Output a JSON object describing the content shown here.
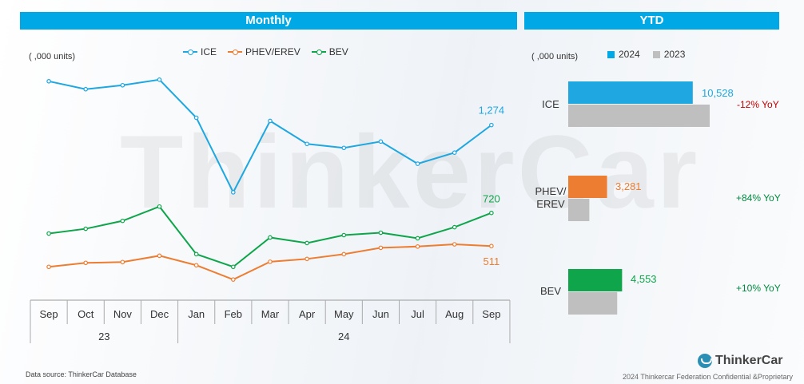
{
  "headers": {
    "monthly": "Monthly",
    "ytd": "YTD"
  },
  "watermark": "ThinkerCar",
  "monthly": {
    "unit_label": "( ,000 units)",
    "legend": [
      "ICE",
      "PHEV/EREV",
      "BEV"
    ],
    "months": [
      "Sep",
      "Oct",
      "Nov",
      "Dec",
      "Jan",
      "Feb",
      "Mar",
      "Apr",
      "May",
      "Jun",
      "Jul",
      "Aug",
      "Sep"
    ],
    "years": [
      {
        "label": "23"
      },
      {
        "label": "24"
      }
    ],
    "end_labels": [
      "1,274",
      "511",
      "720"
    ]
  },
  "ytd": {
    "unit_label": "( ,000 units)",
    "legend": [
      "2024",
      "2023"
    ],
    "categories": [
      {
        "label": "ICE",
        "value_label": "10,528",
        "yoy": "-12% YoY"
      },
      {
        "label": "PHEV/\nEREV",
        "value_label": "3,281",
        "yoy": "+84% YoY"
      },
      {
        "label": "BEV",
        "value_label": "4,553",
        "yoy": "+10% YoY"
      }
    ]
  },
  "footer": {
    "source": "Data source: ThinkerCar Database",
    "copyright": "2024 Thinkercar Federation Confidential &Proprietary",
    "logo": "ThinkerCar"
  },
  "colors": {
    "ice": "#1ea7e1",
    "phev": "#ed7d31",
    "bev": "#0ea54b",
    "gray": "#bfbfbf",
    "header": "#00a9e6",
    "neg": "#c00000",
    "pos": "#008a3e"
  },
  "chart_data": [
    {
      "type": "line",
      "title": "Monthly",
      "ylabel": "( ,000 units)",
      "categories": [
        "Sep 23",
        "Oct 23",
        "Nov 23",
        "Dec 23",
        "Jan 24",
        "Feb 24",
        "Mar 24",
        "Apr 24",
        "May 24",
        "Jun 24",
        "Jul 24",
        "Aug 24",
        "Sep 24"
      ],
      "ylim": [
        200,
        1700
      ],
      "legend_position": "top",
      "series": [
        {
          "name": "ICE",
          "values": [
            1550,
            1500,
            1525,
            1560,
            1320,
            850,
            1300,
            1155,
            1130,
            1170,
            1030,
            1100,
            1274
          ]
        },
        {
          "name": "PHEV/EREV",
          "values": [
            380,
            405,
            410,
            450,
            390,
            300,
            412,
            430,
            460,
            500,
            508,
            522,
            511
          ]
        },
        {
          "name": "BEV",
          "values": [
            590,
            620,
            670,
            760,
            460,
            380,
            565,
            530,
            580,
            595,
            560,
            630,
            720
          ]
        }
      ]
    },
    {
      "type": "bar",
      "title": "YTD",
      "orientation": "horizontal",
      "ylabel": "( ,000 units)",
      "categories": [
        "ICE",
        "PHEV/EREV",
        "BEV"
      ],
      "xlim": [
        0,
        13000
      ],
      "legend_position": "top",
      "series": [
        {
          "name": "2024",
          "values": [
            10528,
            3281,
            4553
          ]
        },
        {
          "name": "2023",
          "values": [
            11960,
            1783,
            4139
          ]
        }
      ]
    }
  ]
}
